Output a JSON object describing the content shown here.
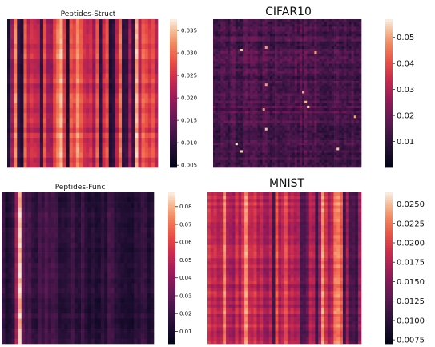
{
  "chart_data": [
    {
      "type": "heatmap",
      "title": "Peptides-Struct",
      "pattern": "columns",
      "colorbar": {
        "ticks": [
          "0.035",
          "0.030",
          "0.025",
          "0.020",
          "0.015",
          "0.010",
          "0.005"
        ],
        "tick_values": [
          0.035,
          0.03,
          0.025,
          0.02,
          0.015,
          0.01,
          0.005
        ],
        "range": [
          0.0045,
          0.0375
        ]
      }
    },
    {
      "type": "heatmap",
      "title": "CIFAR10",
      "pattern": "matrix",
      "colorbar": {
        "ticks": [
          "0.05",
          "0.04",
          "0.03",
          "0.02",
          "0.01"
        ],
        "tick_values": [
          0.05,
          0.04,
          0.03,
          0.02,
          0.01
        ],
        "range": [
          0.0,
          0.057
        ]
      }
    },
    {
      "type": "heatmap",
      "title": "Peptides-Func",
      "pattern": "columns",
      "colorbar": {
        "ticks": [
          "0.08",
          "0.07",
          "0.06",
          "0.05",
          "0.04",
          "0.03",
          "0.02",
          "0.01"
        ],
        "tick_values": [
          0.08,
          0.07,
          0.06,
          0.05,
          0.04,
          0.03,
          0.02,
          0.01
        ],
        "range": [
          0.003,
          0.088
        ]
      }
    },
    {
      "type": "heatmap",
      "title": "MNIST",
      "pattern": "columns",
      "colorbar": {
        "ticks": [
          "0.0250",
          "0.0225",
          "0.0200",
          "0.0175",
          "0.0150",
          "0.0125",
          "0.0100",
          "0.0075"
        ],
        "tick_values": [
          0.025,
          0.0225,
          0.02,
          0.0175,
          0.015,
          0.0125,
          0.01,
          0.0075
        ],
        "range": [
          0.007,
          0.0265
        ]
      }
    }
  ],
  "colormap": "rocket"
}
